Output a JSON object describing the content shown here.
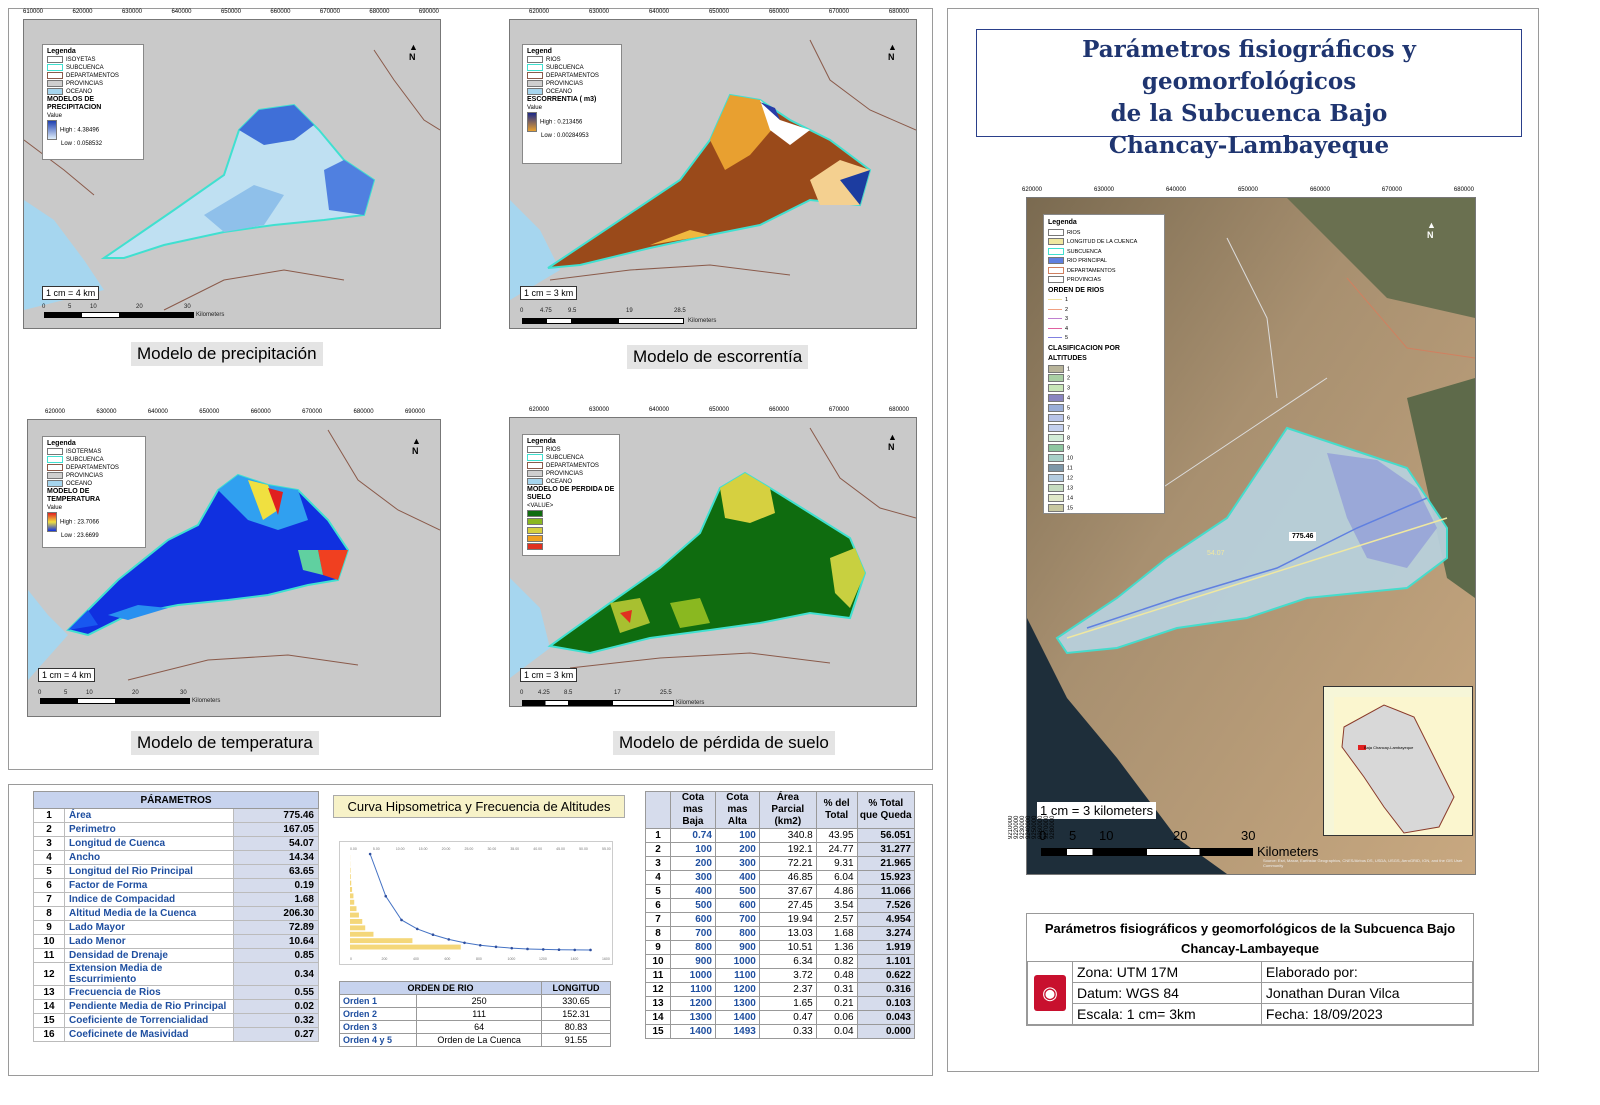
{
  "maps": [
    {
      "caption": "Modelo de precipitación",
      "scale": "1 cm = 4 km",
      "legend": {
        "title": "Legenda",
        "items": [
          "ISOYETAS",
          "SUBCUENCA",
          "DEPARTAMENTOS",
          "PROVINCIAS",
          "OCEANO"
        ],
        "section": "MODELOS DE PRECIPITACION",
        "value_label": "Value",
        "high": "High : 4.38496",
        "low": "Low : 0.058532"
      },
      "scale_ticks": [
        "0",
        "5",
        "10",
        "20",
        "30"
      ],
      "scale_unit": "Kilometers",
      "x_ticks": [
        "610000",
        "620000",
        "630000",
        "640000",
        "650000",
        "660000",
        "670000",
        "680000",
        "690000"
      ],
      "y_ticks": [
        "9270000",
        "9260000",
        "9250000",
        "9240000",
        "9230000"
      ]
    },
    {
      "caption": "Modelo de escorrentía",
      "scale": "1 cm = 3 km",
      "legend": {
        "title": "Legend",
        "items": [
          "RIOS",
          "SUBCUENCA",
          "DEPARTAMENTOS",
          "PROVINCIAS",
          "OCEANO"
        ],
        "section": "ESCORRENTIA ( m3)",
        "value_label": "Value",
        "high": "High : 0.213456",
        "low": "Low : 0.00284953"
      },
      "scale_ticks": [
        "0",
        "4.75",
        "9.5",
        "19",
        "28.5"
      ],
      "scale_unit": "Kilometers",
      "x_ticks": [
        "620000",
        "630000",
        "640000",
        "650000",
        "660000",
        "670000",
        "680000"
      ],
      "y_ticks": [
        "9270000",
        "9260000",
        "9250000",
        "9240000",
        "9230000"
      ]
    },
    {
      "caption": "Modelo de temperatura",
      "scale": "1 cm = 4 km",
      "legend": {
        "title": "Legenda",
        "items": [
          "ISOTERMAS",
          "SUBCUENCA",
          "DEPARTAMENTOS",
          "PROVINCIAS",
          "OCEANO"
        ],
        "section": "MODELO DE TEMPERATURA",
        "value_label": "Value",
        "high": "High : 23.7066",
        "low": "Low : 23.6699"
      },
      "scale_ticks": [
        "0",
        "5",
        "10",
        "20",
        "30"
      ],
      "scale_unit": "Kilometers",
      "x_ticks": [
        "620000",
        "630000",
        "640000",
        "650000",
        "660000",
        "670000",
        "680000",
        "690000"
      ],
      "y_ticks": [
        "9270000",
        "9260000",
        "9250000",
        "9240000",
        "9230000",
        "9220000"
      ]
    },
    {
      "caption": "Modelo de pérdida de suelo",
      "scale": "1 cm = 3 km",
      "legend": {
        "title": "Legenda",
        "items": [
          "RIOS",
          "SUBCUENCA",
          "DEPARTAMENTOS",
          "PROVINCIAS",
          "OCEANO"
        ],
        "section": "MODELO DE PERDIDA DE SUELO",
        "value_label": "<VALUE>",
        "high": "",
        "low": ""
      },
      "scale_ticks": [
        "0",
        "4.25",
        "8.5",
        "17",
        "25.5"
      ],
      "scale_unit": "Kilometers",
      "x_ticks": [
        "620000",
        "630000",
        "640000",
        "650000",
        "660000",
        "670000",
        "680000"
      ],
      "y_ticks": [
        "9270000",
        "9260000",
        "9250000",
        "9240000",
        "9230000"
      ]
    }
  ],
  "params": {
    "header": "PÁRAMETROS",
    "rows": [
      {
        "n": "1",
        "name": "Área",
        "value": "775.46"
      },
      {
        "n": "2",
        "name": "Perimetro",
        "value": "167.05"
      },
      {
        "n": "3",
        "name": "Longitud de Cuenca",
        "value": "54.07"
      },
      {
        "n": "4",
        "name": "Ancho",
        "value": "14.34"
      },
      {
        "n": "5",
        "name": "Longitud del Rio Principal",
        "value": "63.65"
      },
      {
        "n": "6",
        "name": "Factor de Forma",
        "value": "0.19"
      },
      {
        "n": "7",
        "name": "Indice de Compacidad",
        "value": "1.68"
      },
      {
        "n": "8",
        "name": "Altitud Media de la Cuenca",
        "value": "206.30"
      },
      {
        "n": "9",
        "name": "Lado Mayor",
        "value": "72.89"
      },
      {
        "n": "10",
        "name": "Lado Menor",
        "value": "10.64"
      },
      {
        "n": "11",
        "name": "Densidad de Drenaje",
        "value": "0.85"
      },
      {
        "n": "12",
        "name": "Extension Media de Escurrimiento",
        "value": "0.34"
      },
      {
        "n": "13",
        "name": "Frecuencia de Rios",
        "value": "0.55"
      },
      {
        "n": "14",
        "name": "Pendiente Media de Rio Principal",
        "value": "0.02"
      },
      {
        "n": "15",
        "name": "Coeficiente de Torrencialidad",
        "value": "0.32"
      },
      {
        "n": "16",
        "name": "Coeficinete de Masividad",
        "value": "0.27"
      }
    ]
  },
  "curve": {
    "title": "Curva Hipsometrica y Frecuencia de Altitudes",
    "x_ticks": [
      "0.00",
      "5.00",
      "10.00",
      "15.00",
      "20.00",
      "25.00",
      "30.00",
      "35.00",
      "40.00",
      "45.00",
      "50.00",
      "55.00"
    ],
    "x_ticks_bottom": [
      "0",
      "200",
      "400",
      "600",
      "800",
      "1000",
      "1200",
      "1400",
      "1600"
    ]
  },
  "chart_data": {
    "type": "line",
    "x": [
      0.74,
      100,
      200,
      300,
      400,
      500,
      600,
      700,
      800,
      900,
      1000,
      1100,
      1200,
      1300,
      1400
    ],
    "series": [
      {
        "values": [
          100,
          56.051,
          31.277,
          21.965,
          15.923,
          11.066,
          7.526,
          4.954,
          3.274,
          1.919,
          1.101,
          0.622,
          0.316,
          0.103,
          0.043
        ]
      }
    ],
    "bars": [
      43.95,
      24.77,
      9.31,
      6.04,
      4.86,
      3.54,
      2.57,
      1.68,
      1.36,
      0.82,
      0.48,
      0.31,
      0.21,
      0.06,
      0.04
    ]
  },
  "orden": {
    "headers": [
      "ORDEN DE RIO",
      "",
      "LONGITUD"
    ],
    "rows": [
      {
        "name": "Orden 1",
        "count": "250",
        "len": "330.65"
      },
      {
        "name": "Orden 2",
        "count": "111",
        "len": "152.31"
      },
      {
        "name": "Orden 3",
        "count": "64",
        "len": "80.83"
      },
      {
        "name": "Orden 4 y 5",
        "count": "Orden de La Cuenca",
        "len": "91.55"
      }
    ]
  },
  "alt": {
    "headers": [
      "",
      "Cota mas Baja",
      "Cota mas Alta",
      "Área Parcial (km2)",
      "% del Total",
      "% Total que Queda"
    ],
    "rows": [
      [
        "1",
        "0.74",
        "100",
        "340.8",
        "43.95",
        "56.051"
      ],
      [
        "2",
        "100",
        "200",
        "192.1",
        "24.77",
        "31.277"
      ],
      [
        "3",
        "200",
        "300",
        "72.21",
        "9.31",
        "21.965"
      ],
      [
        "4",
        "300",
        "400",
        "46.85",
        "6.04",
        "15.923"
      ],
      [
        "5",
        "400",
        "500",
        "37.67",
        "4.86",
        "11.066"
      ],
      [
        "6",
        "500",
        "600",
        "27.45",
        "3.54",
        "7.526"
      ],
      [
        "7",
        "600",
        "700",
        "19.94",
        "2.57",
        "4.954"
      ],
      [
        "8",
        "700",
        "800",
        "13.03",
        "1.68",
        "3.274"
      ],
      [
        "9",
        "800",
        "900",
        "10.51",
        "1.36",
        "1.919"
      ],
      [
        "10",
        "900",
        "1000",
        "6.34",
        "0.82",
        "1.101"
      ],
      [
        "11",
        "1000",
        "1100",
        "3.72",
        "0.48",
        "0.622"
      ],
      [
        "12",
        "1100",
        "1200",
        "2.37",
        "0.31",
        "0.316"
      ],
      [
        "13",
        "1200",
        "1300",
        "1.65",
        "0.21",
        "0.103"
      ],
      [
        "14",
        "1300",
        "1400",
        "0.47",
        "0.06",
        "0.043"
      ],
      [
        "15",
        "1400",
        "1493",
        "0.33",
        "0.04",
        "0.000"
      ]
    ]
  },
  "main": {
    "title_line1": "Parámetros fisiográficos y geomorfológicos",
    "title_line2": "de la Subcuenca Bajo",
    "title_line3": "Chancay-Lambayeque",
    "legend_title": "Legenda",
    "legend_items": [
      "RIOS",
      "LONGITUD DE LA CUENCA",
      "SUBCUENCA",
      "RIO PRINCIPAL",
      "DEPARTAMENTOS",
      "PROVINCIAS"
    ],
    "orden_title": "ORDEN DE RIOS",
    "orden_items": [
      "1",
      "2",
      "3",
      "4",
      "5"
    ],
    "clas_title": "CLASIFICACION POR ALTITUDES",
    "clas_items": [
      "1",
      "2",
      "3",
      "4",
      "5",
      "6",
      "7",
      "8",
      "9",
      "10",
      "11",
      "12",
      "13",
      "14",
      "15"
    ],
    "clas_colors": [
      "#b8b49a",
      "#a9cfa4",
      "#c8e6b8",
      "#8a86c0",
      "#9aaed8",
      "#b8c4e8",
      "#c4d0ee",
      "#d2ecd8",
      "#8ec6a0",
      "#a8d0c8",
      "#7e98a8",
      "#b4cce0",
      "#c6dcc0",
      "#e0e8c8",
      "#c8c8a0"
    ],
    "orden_colors": [
      "#f2e2a0",
      "#f0a080",
      "#c080d0",
      "#e060a0",
      "#8080e0"
    ],
    "length_label": "775.46",
    "river_label": "54.07",
    "scale": "1 cm = 3 kilometers",
    "scale_ticks": [
      "0",
      "5",
      "10",
      "20",
      "30"
    ],
    "scale_unit": "Kilometers",
    "inset_label": "Baja Chancay-Lambayeque",
    "x_ticks": [
      "620000",
      "630000",
      "640000",
      "650000",
      "660000",
      "670000",
      "680000"
    ],
    "y_ticks": [
      "9280000",
      "9270000",
      "9260000",
      "9250000",
      "9240000",
      "9230000",
      "9220000",
      "9210000"
    ],
    "credits": "Source: Esri, Maxar, Earthstar Geographics, CNES/Airbus DS, USDA, USGS, AeroGRID, IGN, and the GIS User Community"
  },
  "info": {
    "title1": "Parámetros fisiográficos y geomorfológicos de la Subcuenca Bajo",
    "title2": "Chancay-Lambayeque",
    "zona": "Zona: UTM 17M",
    "datum": "Datum: WGS 84",
    "escala": "Escala: 1 cm= 3km",
    "elab": "Elaborado por:",
    "author": "Jonathan Duran Vilca",
    "fecha": "Fecha: 18/09/2023"
  }
}
